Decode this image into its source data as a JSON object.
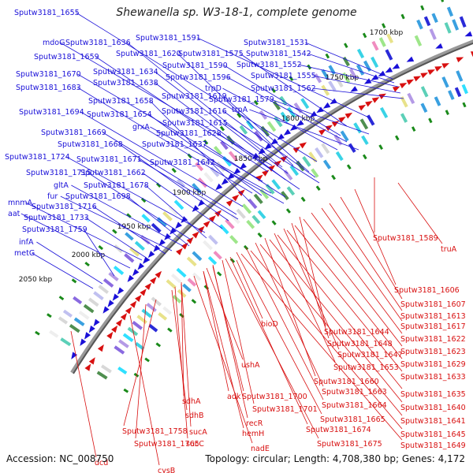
{
  "title": "Shewanella sp. W3-18-1, complete genome",
  "accession": "Accession: NC_008750",
  "topology": "Topology: circular; Length: 4,708,380 bp; Genes: 4,172",
  "colors": {
    "forward": "#1a10d8",
    "reverse": "#d81010",
    "backbone": "#666666",
    "ticks": "#1a8a1a"
  },
  "kbp_labels": [
    "1700 kbp",
    "1750 kbp",
    "1800 kbp",
    "1850 kbp",
    "1900 kbp",
    "1950 kbp",
    "2000 kbp",
    "2050 kbp"
  ],
  "forward_genes": [
    "Sputw3181_1655",
    "mdoG",
    "Sputw3181_1636",
    "Sputw3181_1591",
    "Sputw3181_1531",
    "Sputw3181_1659",
    "Sputw3181_1620",
    "Sputw3181_1575",
    "Sputw3181_1542",
    "Sputw3181_1590",
    "Sputw3181_1552",
    "Sputw3181_1670",
    "Sputw3181_1634",
    "Sputw3181_1596",
    "Sputw3181_1555",
    "Sputw3181_1638",
    "trpD",
    "Sputw3181_1683",
    "Sputw3181_1562",
    "Sputw3181_1619",
    "Sputw3181_1579",
    "Sputw3181_1658",
    "Sputw3181_1616",
    "trpA",
    "Sputw3181_1694",
    "Sputw3181_1654",
    "Sputw3181_1615",
    "grxA",
    "Sputw3181_1669",
    "Sputw3181_1628",
    "Sputw3181_1668",
    "Sputw3181_1637",
    "Sputw3181_1724",
    "Sputw3181_1671",
    "Sputw3181_1642",
    "Sputw3181_1715",
    "Sputw3181_1662",
    "gltA",
    "Sputw3181_1678",
    "fur",
    "Sputw3181_1698",
    "mnmA",
    "Sputw3181_1716",
    "aat",
    "Sputw3181_1733",
    "Sputw3181_1759",
    "infA",
    "metG"
  ],
  "reverse_genes": [
    "Sputw3181_1589",
    "truA",
    "Sputw3181_1606",
    "Sputw3181_1607",
    "Sputw3181_1613",
    "Sputw3181_1617",
    "bioD",
    "Sputw3181_1644",
    "Sputw3181_1622",
    "Sputw3181_1648",
    "Sputw3181_1623",
    "Sputw3181_1647",
    "Sputw3181_1629",
    "Sputw3181_1653",
    "Sputw3181_1633",
    "Sputw3181_1660",
    "Sputw3181_1635",
    "Sputw3181_1663",
    "ushA",
    "adk",
    "Sputw3181_1700",
    "Sputw3181_1664",
    "Sputw3181_1640",
    "sdhA",
    "Sputw3181_1701",
    "Sputw3181_1665",
    "Sputw3181_1641",
    "sdhB",
    "recR",
    "hemH",
    "Sputw3181_1674",
    "Sputw3181_1645",
    "Sputw3181_1758",
    "sucA",
    "sucC",
    "Sputw3181_1675",
    "Sputw3181_1649",
    "dcd",
    "Sputw3181_1765",
    "nadE",
    "cysB"
  ]
}
